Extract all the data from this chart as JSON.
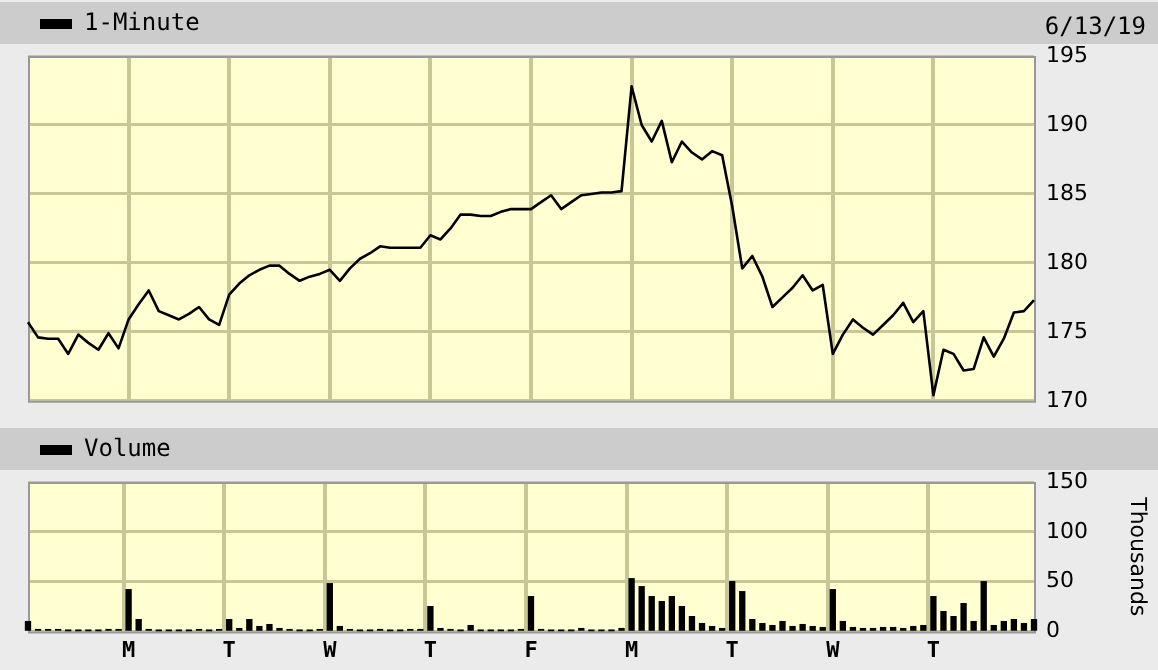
{
  "chart_data": [
    {
      "type": "line",
      "annotations": [
        "6/13/19"
      ],
      "legend": "top left",
      "grid": true,
      "marker": "none",
      "line_style": "solid",
      "tick_labels": "y",
      "categories": [
        null,
        null,
        null,
        null,
        null,
        null,
        null,
        null,
        null,
        null,
        null,
        null,
        null,
        null,
        null,
        null,
        null,
        null,
        null,
        null,
        null,
        null,
        null,
        null,
        null,
        null,
        null,
        null,
        null,
        null,
        null,
        null,
        null,
        null,
        null,
        null,
        null,
        null,
        null,
        null,
        null,
        null,
        null,
        null,
        null,
        null,
        null,
        null,
        null,
        null,
        null,
        null,
        null,
        null,
        null,
        null,
        null,
        null,
        null,
        null,
        null,
        null,
        null,
        null,
        null,
        null,
        null,
        null,
        null,
        null,
        null,
        null,
        null,
        null,
        null,
        null,
        null,
        null,
        null,
        null,
        null,
        null,
        null,
        null,
        null,
        null,
        null,
        null,
        null,
        null,
        null,
        null,
        null,
        null,
        null,
        null,
        null,
        null,
        null,
        null,
        null
      ],
      "ylim": [
        170,
        195
      ],
      "yticks": [
        170,
        175,
        180,
        185,
        190,
        195
      ],
      "series": [
        {
          "name": "1-Minute",
          "color": "#000000",
          "values": [
            175.7,
            174.6,
            174.5,
            174.5,
            173.4,
            174.8,
            174.2,
            173.7,
            174.9,
            173.8,
            175.9,
            177.0,
            178.0,
            176.5,
            176.2,
            175.9,
            176.3,
            176.8,
            175.9,
            175.5,
            177.7,
            178.5,
            179.1,
            179.5,
            179.8,
            179.8,
            179.2,
            178.7,
            179.0,
            179.2,
            179.5,
            178.7,
            179.6,
            180.3,
            180.7,
            181.2,
            181.1,
            181.1,
            181.1,
            181.1,
            182.0,
            181.7,
            182.5,
            183.5,
            183.5,
            183.4,
            183.4,
            183.7,
            183.9,
            183.9,
            183.9,
            184.4,
            184.9,
            183.9,
            184.4,
            184.9,
            185.0,
            185.1,
            185.1,
            185.2,
            192.8,
            190.0,
            188.8,
            190.3,
            187.3,
            188.8,
            188.0,
            187.5,
            188.1,
            187.8,
            184.1,
            179.6,
            180.5,
            179.0,
            176.8,
            177.5,
            178.2,
            179.1,
            178.0,
            178.4,
            173.4,
            174.8,
            175.9,
            175.3,
            174.8,
            175.5,
            176.2,
            177.1,
            175.7,
            176.5,
            170.4,
            173.7,
            173.4,
            172.2,
            172.3,
            174.6,
            173.2,
            174.5,
            176.4,
            176.5,
            177.3
          ]
        }
      ]
    },
    {
      "type": "bar",
      "legend": "top left",
      "grid": true,
      "ylabel": "Thousands",
      "categories": [
        null,
        null,
        null,
        null,
        null,
        null,
        null,
        null,
        null,
        null,
        "M",
        null,
        null,
        null,
        null,
        null,
        null,
        null,
        null,
        null,
        "T",
        null,
        null,
        null,
        null,
        null,
        null,
        null,
        null,
        null,
        "W",
        null,
        null,
        null,
        null,
        null,
        null,
        null,
        null,
        null,
        "T",
        null,
        null,
        null,
        null,
        null,
        null,
        null,
        null,
        null,
        "F",
        null,
        null,
        null,
        null,
        null,
        null,
        null,
        null,
        null,
        "M",
        null,
        null,
        null,
        null,
        null,
        null,
        null,
        null,
        null,
        "T",
        null,
        null,
        null,
        null,
        null,
        null,
        null,
        null,
        null,
        "W",
        null,
        null,
        null,
        null,
        null,
        null,
        null,
        null,
        null,
        "T",
        null,
        null,
        null,
        null,
        null,
        null,
        null,
        null,
        null,
        null
      ],
      "ylim": [
        0,
        150
      ],
      "yticks": [
        0,
        50,
        100,
        150
      ],
      "series": [
        {
          "name": "Volume",
          "color": "#000000",
          "values": [
            10,
            2,
            2,
            2,
            1,
            1,
            1,
            1,
            2,
            2,
            42,
            12,
            2,
            1,
            1,
            1,
            1,
            2,
            1,
            2,
            12,
            3,
            12,
            5,
            7,
            3,
            2,
            1,
            1,
            2,
            48,
            5,
            2,
            1,
            1,
            2,
            1,
            1,
            2,
            2,
            25,
            3,
            2,
            1,
            6,
            1,
            1,
            1,
            1,
            2,
            35,
            2,
            1,
            1,
            1,
            3,
            1,
            1,
            1,
            3,
            53,
            45,
            35,
            30,
            35,
            25,
            15,
            8,
            5,
            3,
            50,
            40,
            12,
            8,
            6,
            10,
            5,
            7,
            5,
            4,
            42,
            10,
            4,
            3,
            3,
            4,
            4,
            3,
            5,
            6,
            35,
            20,
            15,
            28,
            10,
            50,
            6,
            10,
            12,
            8,
            12
          ]
        }
      ]
    }
  ]
}
